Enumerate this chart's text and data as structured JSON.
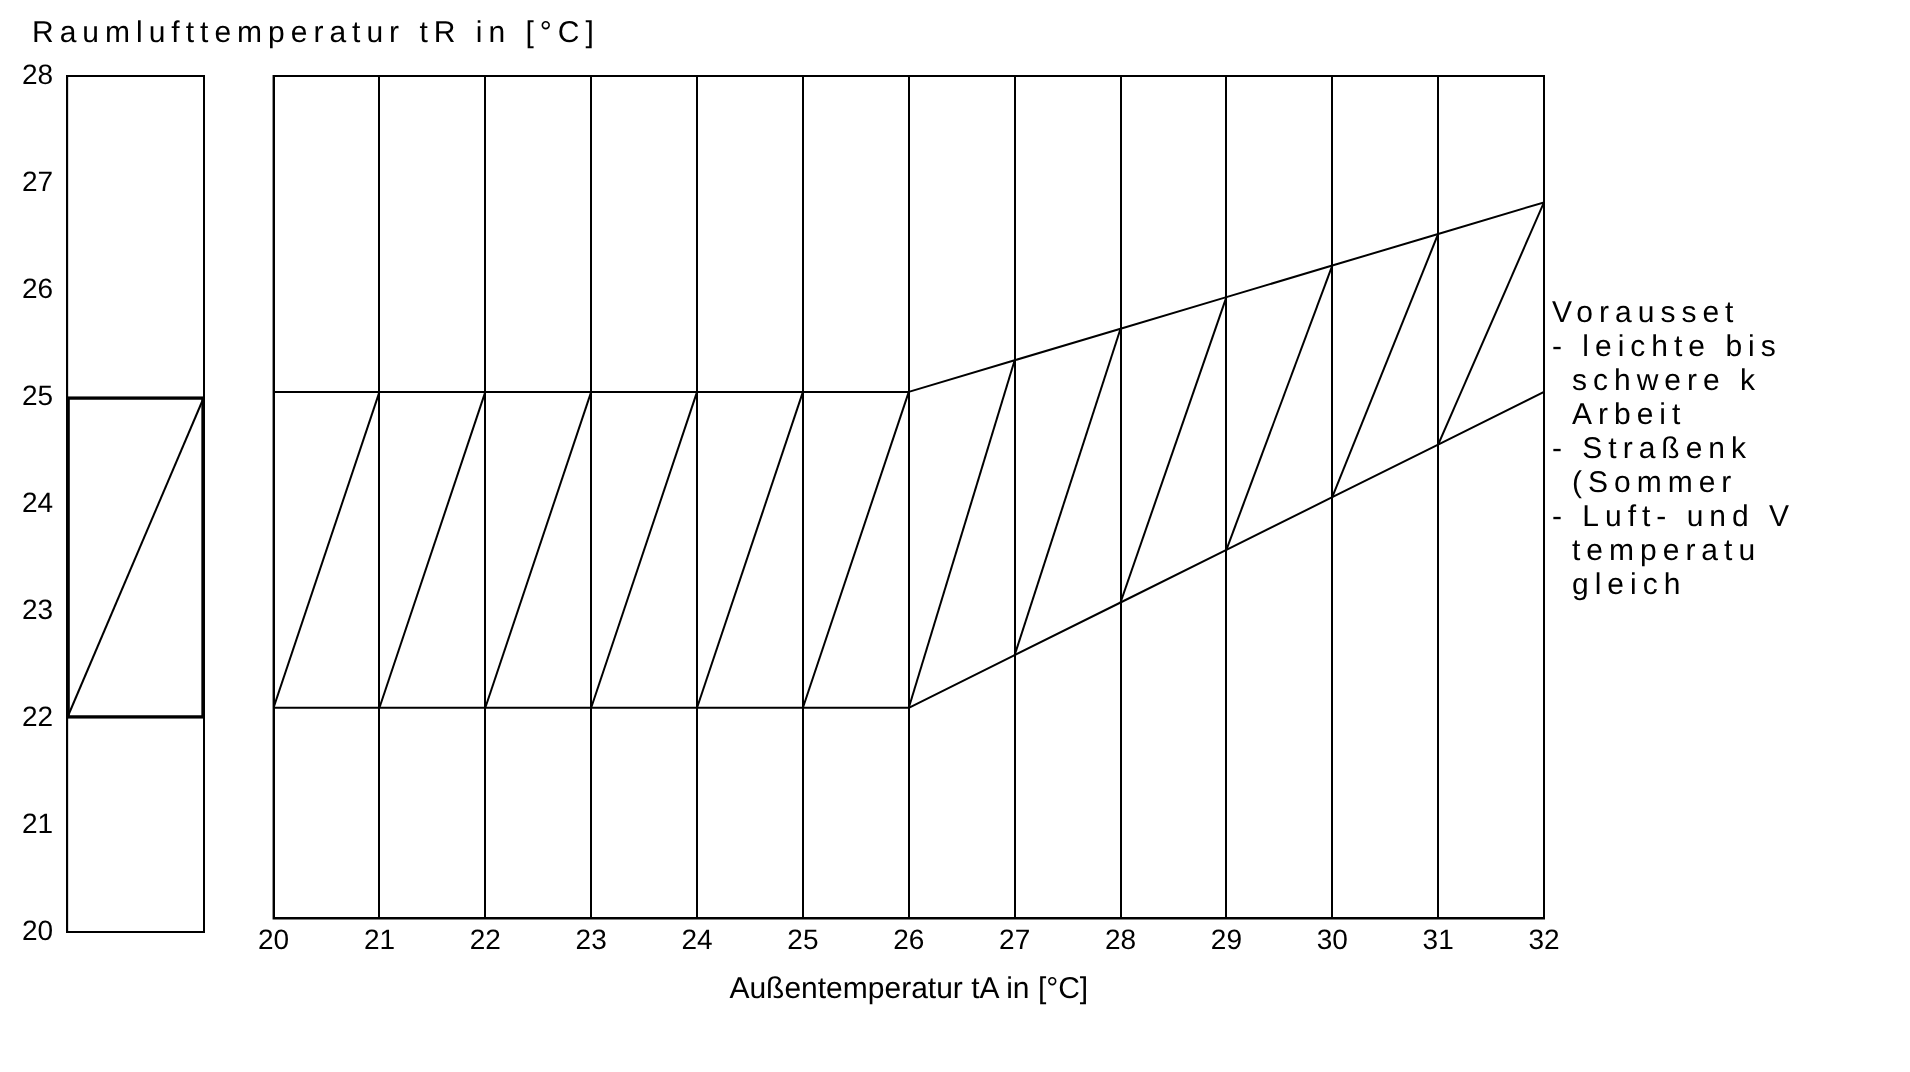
{
  "chart_data": [
    {
      "type": "bar",
      "ylabel": "Raumlufttemperatur tR in [°C]",
      "categories": [
        null
      ],
      "base": [
        22
      ],
      "values": [
        3
      ],
      "color": "#000000",
      "ylim": [
        20,
        28
      ],
      "yticks": [
        20,
        21,
        22,
        23,
        24,
        25,
        26,
        27,
        28
      ],
      "tick_labels": "y",
      "grid": false
    },
    {
      "type": "line",
      "xlabel": "Außentemperatur tA in [°C]",
      "x": [
        20,
        21,
        22,
        23,
        24,
        25,
        26,
        27,
        28,
        29,
        30,
        31,
        32
      ],
      "series": [
        {
          "color": "#000000",
          "values": [
            25,
            25,
            25,
            25,
            25,
            25,
            25,
            25.3,
            25.6,
            25.9,
            26.2,
            26.5,
            26.8
          ]
        },
        {
          "color": "#000000",
          "values": [
            22,
            22,
            22,
            22,
            22,
            22,
            22,
            22.5,
            23,
            23.5,
            24,
            24.5,
            25
          ]
        },
        {
          "color": "#000000",
          "x": [
            20,
            21
          ],
          "values": [
            22,
            25
          ]
        },
        {
          "color": "#000000",
          "x": [
            21,
            22
          ],
          "values": [
            22,
            25
          ]
        },
        {
          "color": "#000000",
          "x": [
            22,
            23
          ],
          "values": [
            22,
            25
          ]
        },
        {
          "color": "#000000",
          "x": [
            23,
            24
          ],
          "values": [
            22,
            25
          ]
        },
        {
          "color": "#000000",
          "x": [
            24,
            25
          ],
          "values": [
            22,
            25
          ]
        },
        {
          "color": "#000000",
          "x": [
            25,
            26
          ],
          "values": [
            22,
            25
          ]
        },
        {
          "color": "#000000",
          "x": [
            26,
            27
          ],
          "values": [
            22,
            25.3
          ]
        },
        {
          "color": "#000000",
          "x": [
            27,
            28
          ],
          "values": [
            22.5,
            25.6
          ]
        },
        {
          "color": "#000000",
          "x": [
            28,
            29
          ],
          "values": [
            23,
            25.9
          ]
        },
        {
          "color": "#000000",
          "x": [
            29,
            30
          ],
          "values": [
            23.5,
            26.2
          ]
        },
        {
          "color": "#000000",
          "x": [
            30,
            31
          ],
          "values": [
            24,
            26.5
          ]
        },
        {
          "color": "#000000",
          "x": [
            31,
            32
          ],
          "values": [
            24.5,
            26.8
          ]
        }
      ],
      "xlim": [
        20,
        32
      ],
      "xticks": [
        20,
        21,
        22,
        23,
        24,
        25,
        26,
        27,
        28,
        29,
        30,
        31,
        32
      ],
      "ylim": [
        20,
        28
      ],
      "tick_labels": "x",
      "grid": "x",
      "marker": "none",
      "line_style": "solid",
      "annotations": [
        "Vorausset",
        "- leichte bis",
        "schwere k",
        "Arbeit",
        "- Straßenk",
        "(Sommer",
        "- Luft- und V",
        "temperatu",
        "gleich"
      ]
    }
  ]
}
